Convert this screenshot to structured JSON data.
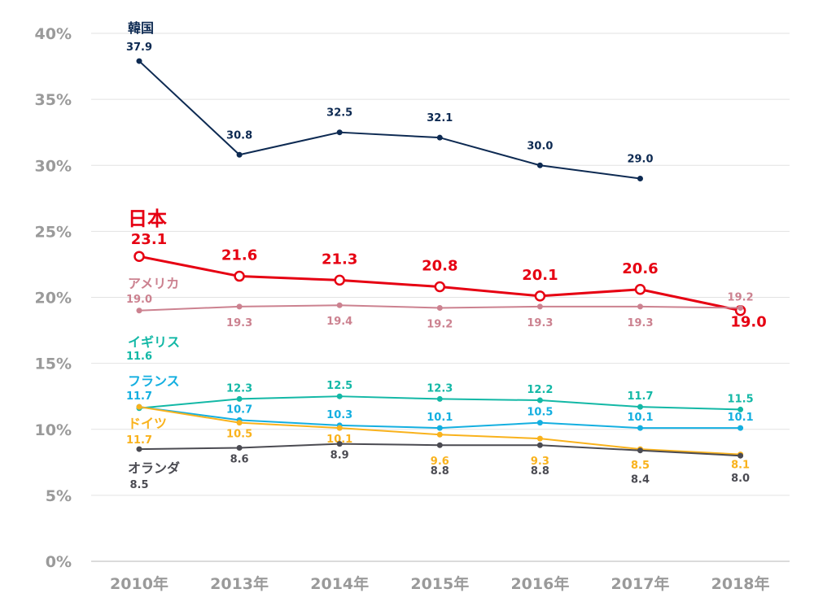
{
  "chart_data": {
    "type": "line",
    "title": "",
    "xlabel": "",
    "ylabel": "",
    "categories": [
      "2010年",
      "2013年",
      "2014年",
      "2015年",
      "2016年",
      "2017年",
      "2018年"
    ],
    "y_ticks": [
      "0%",
      "5%",
      "10%",
      "15%",
      "20%",
      "25%",
      "30%",
      "35%",
      "40%"
    ],
    "ylim": [
      0,
      40
    ],
    "grid": true,
    "series": [
      {
        "name": "韓国",
        "color": "#0d2a52",
        "values": [
          37.9,
          30.8,
          32.5,
          32.1,
          30.0,
          29.0,
          null
        ],
        "labels": [
          "37.9",
          "30.8",
          "32.5",
          "32.1",
          "30.0",
          "29.0",
          null
        ]
      },
      {
        "name": "日本",
        "color": "#e60012",
        "values": [
          23.1,
          21.6,
          21.3,
          20.8,
          20.1,
          20.6,
          19.0
        ],
        "labels": [
          "23.1",
          "21.6",
          "21.3",
          "20.8",
          "20.1",
          "20.6",
          "19.0"
        ]
      },
      {
        "name": "アメリカ",
        "color": "#cc8290",
        "values": [
          19.0,
          19.3,
          19.4,
          19.2,
          19.3,
          19.3,
          19.2
        ],
        "labels": [
          "19.0",
          "19.3",
          "19.4",
          "19.2",
          "19.3",
          "19.3",
          "19.2"
        ]
      },
      {
        "name": "イギリス",
        "color": "#13b8a6",
        "values": [
          11.6,
          12.3,
          12.5,
          12.3,
          12.2,
          11.7,
          11.5
        ],
        "labels": [
          "11.6",
          "12.3",
          "12.5",
          "12.3",
          "12.2",
          "11.7",
          "11.5"
        ]
      },
      {
        "name": "フランス",
        "color": "#14afe0",
        "values": [
          11.7,
          10.7,
          10.3,
          10.1,
          10.5,
          10.1,
          10.1
        ],
        "labels": [
          "11.7",
          "10.7",
          "10.3",
          "10.1",
          "10.5",
          "10.1",
          "10.1"
        ]
      },
      {
        "name": "ドイツ",
        "color": "#f9b21c",
        "values": [
          11.7,
          10.5,
          10.1,
          9.6,
          9.3,
          8.5,
          8.1
        ],
        "labels": [
          "11.7",
          "10.5",
          "10.1",
          "9.6",
          "9.3",
          "8.5",
          "8.1"
        ]
      },
      {
        "name": "オランダ",
        "color": "#4b4b52",
        "values": [
          8.5,
          8.6,
          8.9,
          8.8,
          8.8,
          8.4,
          8.0
        ],
        "labels": [
          "8.5",
          "8.6",
          "8.9",
          "8.8",
          "8.8",
          "8.4",
          "8.0"
        ]
      }
    ]
  }
}
